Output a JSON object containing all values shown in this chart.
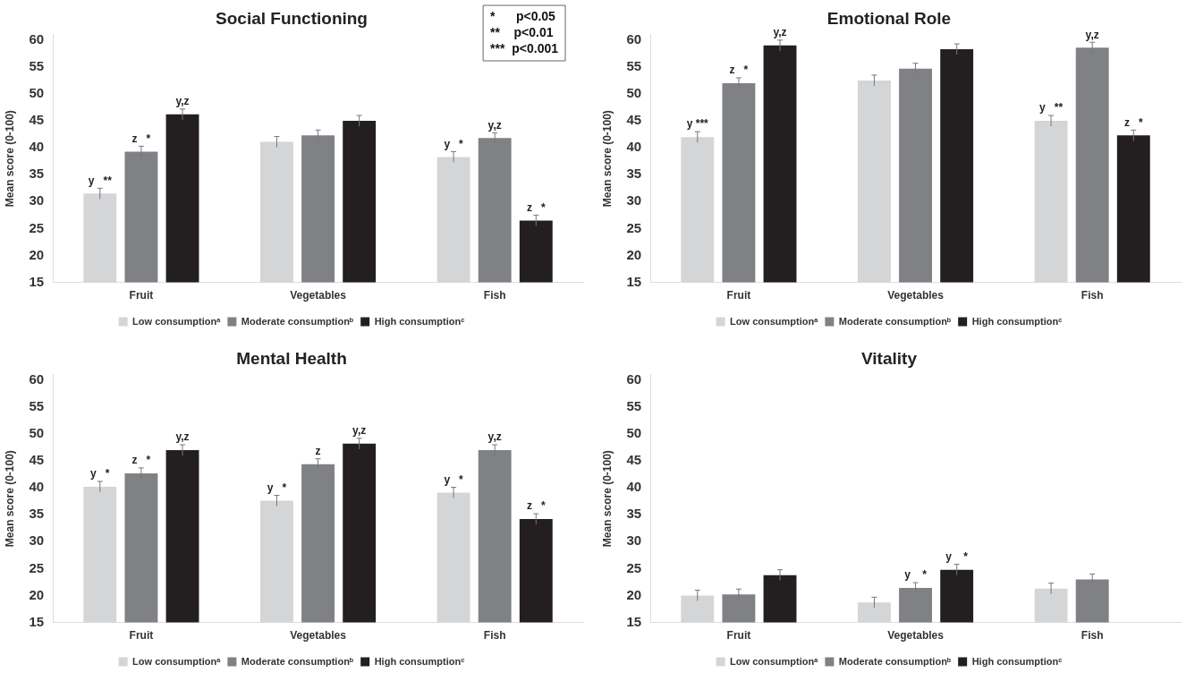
{
  "chart_data": [
    {
      "type": "bar",
      "title": "Social Functioning",
      "ylabel": "Mean score (0-100)",
      "categories": [
        "Fruit",
        "Vegetables",
        "Fish"
      ],
      "ylim": [
        15,
        61
      ],
      "yticks": [
        15,
        20,
        25,
        30,
        35,
        40,
        45,
        50,
        55,
        60
      ],
      "grid": false,
      "legend": "bottom",
      "series": [
        {
          "name": "Low consumptionᵃ",
          "color": "#d4d5d7",
          "values": [
            31.5,
            41.1,
            38.3
          ],
          "errors": [
            1,
            1,
            1
          ],
          "value_labels": [
            "y   **",
            null,
            "y   *"
          ]
        },
        {
          "name": "Moderate consumptionᵇ",
          "color": "#808184",
          "values": [
            39.3,
            42.3,
            41.8
          ],
          "errors": [
            1,
            1,
            1
          ],
          "value_labels": [
            "z   *",
            null,
            "y,z"
          ]
        },
        {
          "name": "High consumptionᶜ",
          "color": "#231f20",
          "values": [
            46.2,
            45.0,
            26.5
          ],
          "errors": [
            1,
            1,
            1
          ],
          "value_labels": [
            "y,z",
            null,
            "z   *"
          ]
        }
      ],
      "annotations": [
        "*      p<0.05",
        "**    p<0.01",
        "***  p<0.001"
      ]
    },
    {
      "type": "bar",
      "title": "Emotional Role",
      "ylabel": "Mean score (0-100)",
      "categories": [
        "Fruit",
        "Vegetables",
        "Fish"
      ],
      "ylim": [
        15,
        61
      ],
      "yticks": [
        15,
        20,
        25,
        30,
        35,
        40,
        45,
        50,
        55,
        60
      ],
      "grid": false,
      "legend": "bottom",
      "series": [
        {
          "name": "Low consumptionᵃ",
          "color": "#d4d5d7",
          "values": [
            42.0,
            52.5,
            45.0
          ],
          "errors": [
            1,
            1,
            1
          ],
          "value_labels": [
            "y ***",
            null,
            "y   **"
          ]
        },
        {
          "name": "Moderate consumptionᵇ",
          "color": "#808184",
          "values": [
            52.0,
            54.7,
            58.6
          ],
          "errors": [
            1,
            1,
            1
          ],
          "value_labels": [
            "z   *",
            null,
            "y,z"
          ]
        },
        {
          "name": "High consumptionᶜ",
          "color": "#231f20",
          "values": [
            59.0,
            58.3,
            42.3
          ],
          "errors": [
            1,
            1,
            1
          ],
          "value_labels": [
            "y,z",
            null,
            "z   *"
          ]
        }
      ]
    },
    {
      "type": "bar",
      "title": "Mental Health",
      "ylabel": "Mean score (0-100)",
      "categories": [
        "Fruit",
        "Vegetables",
        "Fish"
      ],
      "ylim": [
        15,
        61
      ],
      "yticks": [
        15,
        20,
        25,
        30,
        35,
        40,
        45,
        50,
        55,
        60
      ],
      "grid": false,
      "legend": "bottom",
      "series": [
        {
          "name": "Low consumptionᵃ",
          "color": "#d4d5d7",
          "values": [
            40.2,
            37.6,
            39.1
          ],
          "errors": [
            1,
            1,
            1
          ],
          "value_labels": [
            "y   *",
            "y   *",
            "y   *"
          ]
        },
        {
          "name": "Moderate consumptionᵇ",
          "color": "#808184",
          "values": [
            42.7,
            44.4,
            47.0
          ],
          "errors": [
            1,
            1,
            1
          ],
          "value_labels": [
            "z   *",
            "z",
            "y,z"
          ]
        },
        {
          "name": "High consumptionᶜ",
          "color": "#231f20",
          "values": [
            47.0,
            48.2,
            34.2
          ],
          "errors": [
            1,
            1,
            1
          ],
          "value_labels": [
            "y,z",
            "y,z",
            "z   *"
          ]
        }
      ]
    },
    {
      "type": "bar",
      "title": "Vitality",
      "ylabel": "Mean score (0-100)",
      "categories": [
        "Fruit",
        "Vegetables",
        "Fish"
      ],
      "ylim": [
        15,
        61
      ],
      "yticks": [
        15,
        20,
        25,
        30,
        35,
        40,
        45,
        50,
        55,
        60
      ],
      "grid": false,
      "legend": "bottom",
      "series": [
        {
          "name": "Low consumptionᵃ",
          "color": "#d4d5d7",
          "values": [
            20.0,
            18.7,
            21.3
          ],
          "errors": [
            1,
            1,
            1
          ]
        },
        {
          "name": "Moderate consumptionᵇ",
          "color": "#808184",
          "values": [
            20.2,
            21.4,
            23.0
          ],
          "errors": [
            1,
            1,
            1
          ],
          "value_labels": [
            null,
            "y    *",
            null
          ]
        },
        {
          "name": "High consumptionᶜ",
          "color": "#231f20",
          "values": [
            23.8,
            24.8,
            null
          ],
          "errors": [
            1,
            1,
            null
          ],
          "value_labels": [
            null,
            "y    *",
            null
          ]
        }
      ]
    }
  ]
}
